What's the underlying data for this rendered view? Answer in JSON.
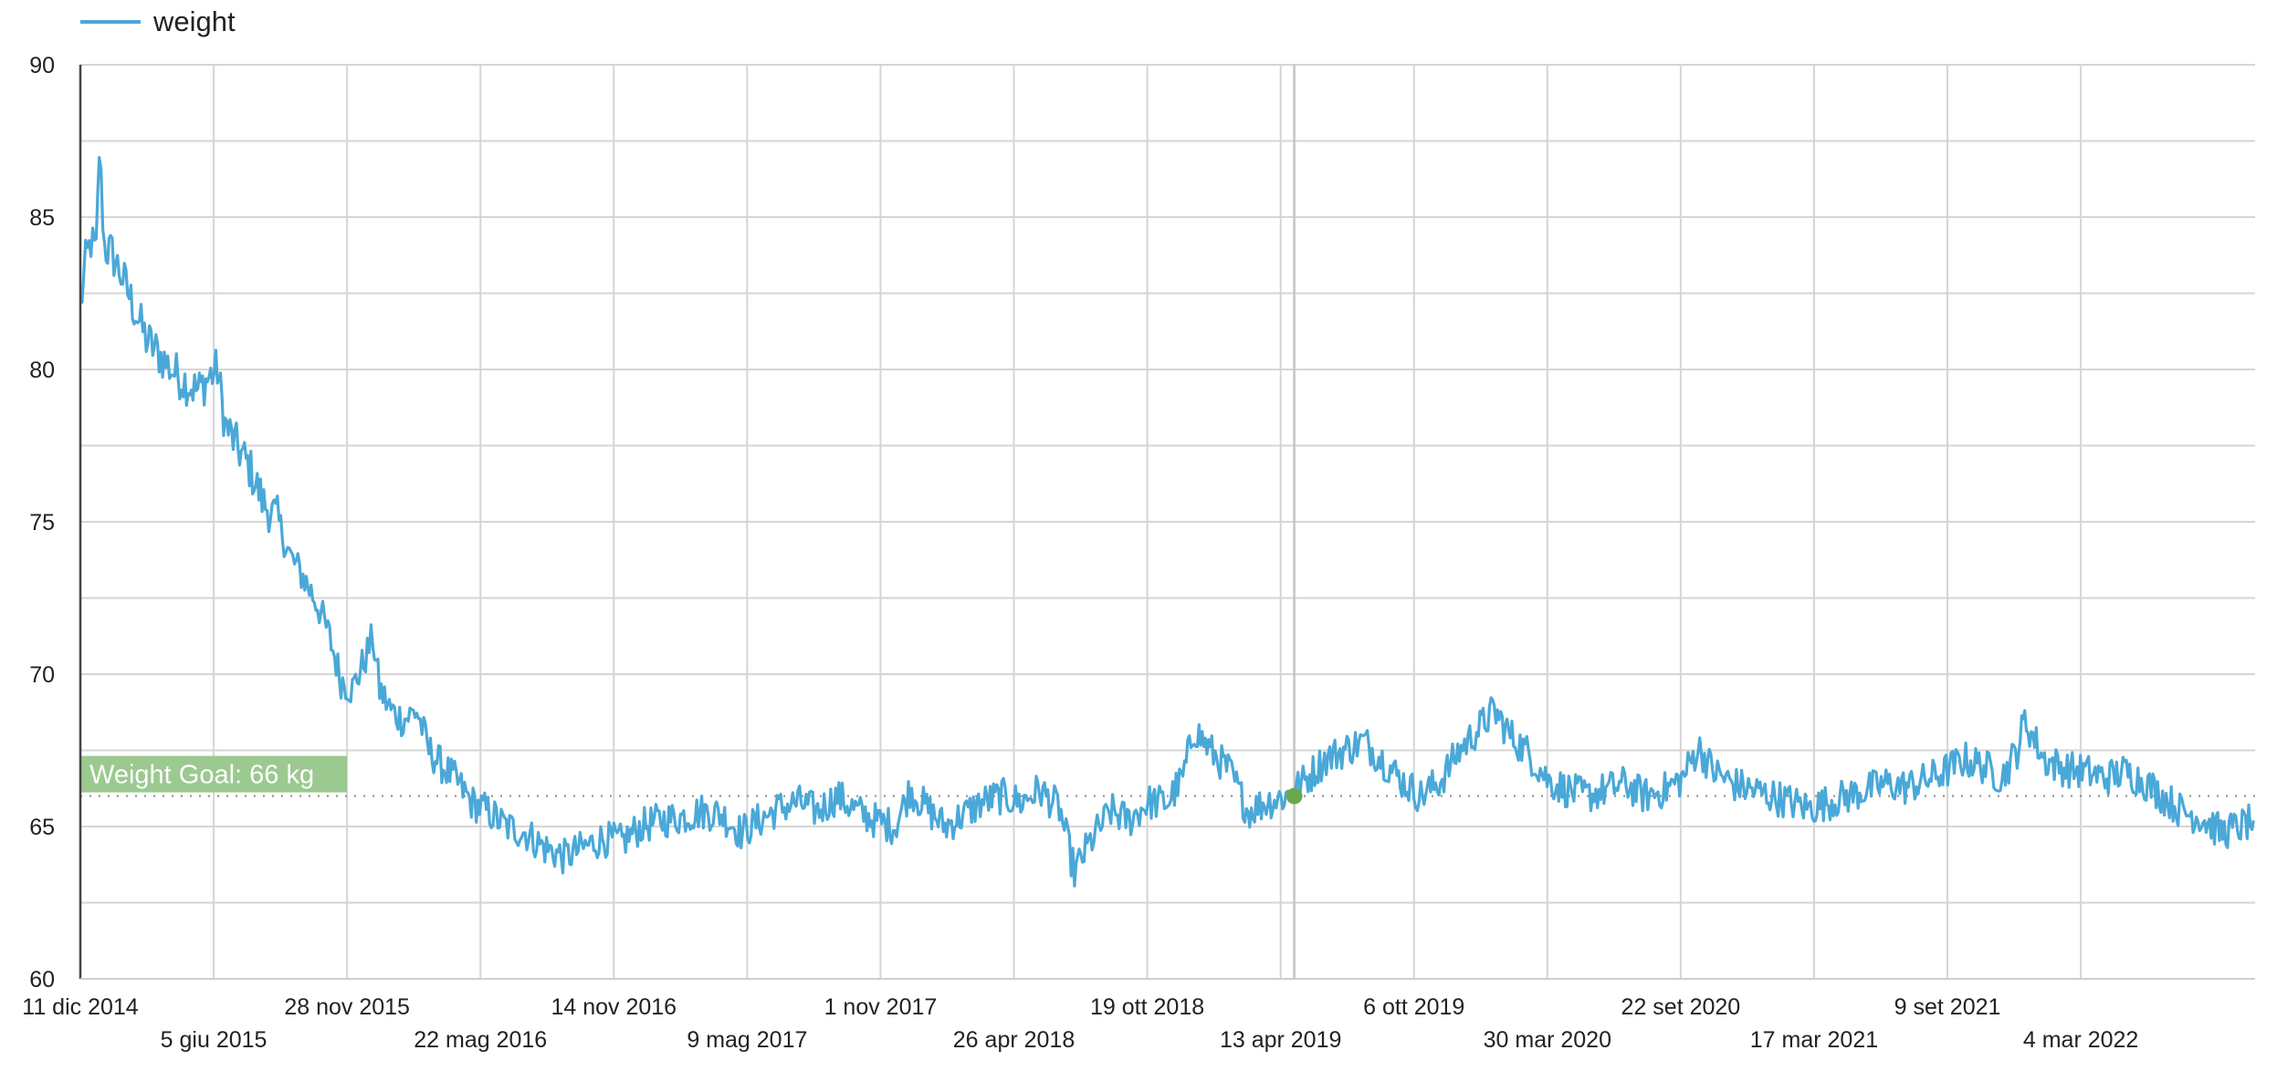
{
  "chart_data": {
    "type": "line",
    "title": "",
    "xlabel": "",
    "ylabel": "",
    "ylim": [
      60,
      90
    ],
    "xlim": [
      "2014-12-11",
      "2022-10-20"
    ],
    "grid": true,
    "legend": {
      "placement": "top-left",
      "entries": [
        "weight"
      ]
    },
    "y_ticks": [
      90,
      85,
      80,
      75,
      70,
      65,
      60
    ],
    "x_ticks": [
      {
        "date": "2014-12-11",
        "label": "11 dic 2014",
        "row": 0
      },
      {
        "date": "2015-06-05",
        "label": "5 giu 2015",
        "row": 1
      },
      {
        "date": "2015-11-28",
        "label": "28 nov 2015",
        "row": 0
      },
      {
        "date": "2016-05-22",
        "label": "22 mag 2016",
        "row": 1
      },
      {
        "date": "2016-11-14",
        "label": "14 nov 2016",
        "row": 0
      },
      {
        "date": "2017-05-09",
        "label": "9 mag 2017",
        "row": 1
      },
      {
        "date": "2017-11-01",
        "label": "1 nov 2017",
        "row": 0
      },
      {
        "date": "2018-04-26",
        "label": "26 apr 2018",
        "row": 1
      },
      {
        "date": "2018-10-19",
        "label": "19 ott 2018",
        "row": 0
      },
      {
        "date": "2019-04-13",
        "label": "13 apr 2019",
        "row": 1
      },
      {
        "date": "2019-10-06",
        "label": "6 ott 2019",
        "row": 0
      },
      {
        "date": "2020-03-30",
        "label": "30 mar 2020",
        "row": 1
      },
      {
        "date": "2020-09-22",
        "label": "22 set 2020",
        "row": 0
      },
      {
        "date": "2021-03-17",
        "label": "17 mar 2021",
        "row": 1
      },
      {
        "date": "2021-09-09",
        "label": "9 set 2021",
        "row": 0
      },
      {
        "date": "2022-03-04",
        "label": "4 mar 2022",
        "row": 1
      }
    ],
    "series": [
      {
        "name": "weight",
        "color": "#4aa8d8",
        "points": [
          [
            "2014-12-11",
            82.0
          ],
          [
            "2014-12-18",
            83.5
          ],
          [
            "2014-12-25",
            84.2
          ],
          [
            "2015-01-01",
            83.8
          ],
          [
            "2015-01-05",
            87.2
          ],
          [
            "2015-01-12",
            84.0
          ],
          [
            "2015-01-22",
            83.8
          ],
          [
            "2015-02-05",
            83.0
          ],
          [
            "2015-02-20",
            82.0
          ],
          [
            "2015-03-08",
            81.0
          ],
          [
            "2015-03-25",
            80.5
          ],
          [
            "2015-04-10",
            80.0
          ],
          [
            "2015-04-28",
            79.6
          ],
          [
            "2015-05-15",
            79.3
          ],
          [
            "2015-06-01",
            79.8
          ],
          [
            "2015-06-10",
            80.0
          ],
          [
            "2015-06-20",
            78.2
          ],
          [
            "2015-07-05",
            77.5
          ],
          [
            "2015-07-22",
            76.8
          ],
          [
            "2015-08-10",
            75.6
          ],
          [
            "2015-08-28",
            75.1
          ],
          [
            "2015-09-15",
            73.8
          ],
          [
            "2015-10-01",
            73.2
          ],
          [
            "2015-10-20",
            72.3
          ],
          [
            "2015-11-05",
            71.2
          ],
          [
            "2015-11-20",
            69.8
          ],
          [
            "2015-12-05",
            69.5
          ],
          [
            "2015-12-20",
            70.4
          ],
          [
            "2016-01-01",
            71.2
          ],
          [
            "2016-01-10",
            69.5
          ],
          [
            "2016-01-25",
            68.8
          ],
          [
            "2016-02-10",
            68.5
          ],
          [
            "2016-02-28",
            68.8
          ],
          [
            "2016-03-15",
            67.5
          ],
          [
            "2016-04-01",
            67.0
          ],
          [
            "2016-04-20",
            66.5
          ],
          [
            "2016-05-10",
            65.8
          ],
          [
            "2016-06-01",
            65.5
          ],
          [
            "2016-06-25",
            65.0
          ],
          [
            "2016-07-20",
            64.8
          ],
          [
            "2016-08-15",
            64.3
          ],
          [
            "2016-09-10",
            64.0
          ],
          [
            "2016-10-05",
            64.3
          ],
          [
            "2016-10-30",
            64.6
          ],
          [
            "2016-11-25",
            64.5
          ],
          [
            "2016-12-20",
            65.0
          ],
          [
            "2017-01-15",
            65.2
          ],
          [
            "2017-02-10",
            65.3
          ],
          [
            "2017-03-10",
            65.5
          ],
          [
            "2017-04-05",
            65.4
          ],
          [
            "2017-05-01",
            64.8
          ],
          [
            "2017-05-25",
            65.2
          ],
          [
            "2017-06-20",
            65.6
          ],
          [
            "2017-07-15",
            65.8
          ],
          [
            "2017-08-10",
            65.5
          ],
          [
            "2017-09-05",
            66.0
          ],
          [
            "2017-10-01",
            65.5
          ],
          [
            "2017-10-25",
            65.2
          ],
          [
            "2017-11-20",
            65.0
          ],
          [
            "2017-12-10",
            66.2
          ],
          [
            "2018-01-01",
            65.6
          ],
          [
            "2018-01-25",
            65.0
          ],
          [
            "2018-02-20",
            65.4
          ],
          [
            "2018-03-15",
            65.8
          ],
          [
            "2018-04-10",
            66.0
          ],
          [
            "2018-05-05",
            65.8
          ],
          [
            "2018-05-30",
            66.2
          ],
          [
            "2018-06-25",
            65.6
          ],
          [
            "2018-07-15",
            63.5
          ],
          [
            "2018-08-05",
            64.5
          ],
          [
            "2018-09-01",
            65.5
          ],
          [
            "2018-09-25",
            65.2
          ],
          [
            "2018-10-20",
            65.8
          ],
          [
            "2018-11-15",
            65.8
          ],
          [
            "2018-12-05",
            66.6
          ],
          [
            "2018-12-20",
            68.2
          ],
          [
            "2019-01-10",
            67.5
          ],
          [
            "2019-02-05",
            66.8
          ],
          [
            "2019-03-01",
            65.5
          ],
          [
            "2019-03-25",
            65.8
          ],
          [
            "2019-04-20",
            66.0
          ],
          [
            "2019-05-15",
            66.5
          ],
          [
            "2019-06-10",
            67.2
          ],
          [
            "2019-07-05",
            67.5
          ],
          [
            "2019-08-01",
            67.8
          ],
          [
            "2019-08-25",
            67.2
          ],
          [
            "2019-09-20",
            66.5
          ],
          [
            "2019-10-15",
            66.0
          ],
          [
            "2019-11-10",
            66.5
          ],
          [
            "2019-12-05",
            67.5
          ],
          [
            "2019-12-30",
            68.2
          ],
          [
            "2020-01-20",
            68.8
          ],
          [
            "2020-02-10",
            68.0
          ],
          [
            "2020-03-05",
            67.4
          ],
          [
            "2020-04-01",
            66.5
          ],
          [
            "2020-04-25",
            66.2
          ],
          [
            "2020-05-20",
            66.0
          ],
          [
            "2020-06-15",
            66.2
          ],
          [
            "2020-07-10",
            66.4
          ],
          [
            "2020-08-05",
            66.0
          ],
          [
            "2020-09-01",
            66.2
          ],
          [
            "2020-09-25",
            66.6
          ],
          [
            "2020-10-15",
            67.6
          ],
          [
            "2020-11-05",
            66.8
          ],
          [
            "2020-11-30",
            66.4
          ],
          [
            "2020-12-25",
            66.2
          ],
          [
            "2021-01-20",
            66.0
          ],
          [
            "2021-02-15",
            65.8
          ],
          [
            "2021-03-10",
            65.6
          ],
          [
            "2021-04-05",
            65.8
          ],
          [
            "2021-05-01",
            66.0
          ],
          [
            "2021-05-25",
            66.2
          ],
          [
            "2021-06-20",
            66.4
          ],
          [
            "2021-07-15",
            66.3
          ],
          [
            "2021-08-10",
            66.5
          ],
          [
            "2021-09-05",
            66.8
          ],
          [
            "2021-10-01",
            67.2
          ],
          [
            "2021-10-25",
            67.0
          ],
          [
            "2021-11-20",
            66.6
          ],
          [
            "2021-12-10",
            67.5
          ],
          [
            "2021-12-20",
            68.5
          ],
          [
            "2022-01-15",
            67.2
          ],
          [
            "2022-02-10",
            66.9
          ],
          [
            "2022-03-10",
            66.8
          ],
          [
            "2022-04-05",
            66.6
          ],
          [
            "2022-05-01",
            66.8
          ],
          [
            "2022-05-25",
            66.5
          ],
          [
            "2022-06-20",
            66.0
          ],
          [
            "2022-07-15",
            65.5
          ],
          [
            "2022-08-10",
            65.3
          ],
          [
            "2022-09-05",
            64.8
          ],
          [
            "2022-10-01",
            65.0
          ],
          [
            "2022-10-18",
            65.2
          ]
        ]
      }
    ],
    "goal_line": {
      "value": 66,
      "label": "Weight Goal: 66 kg",
      "color": "#9bc98f"
    },
    "highlight_point": {
      "date": "2019-05-01",
      "value": 66.0,
      "color": "#6aa84f"
    },
    "vertical_marker": {
      "date": "2019-05-01"
    }
  }
}
